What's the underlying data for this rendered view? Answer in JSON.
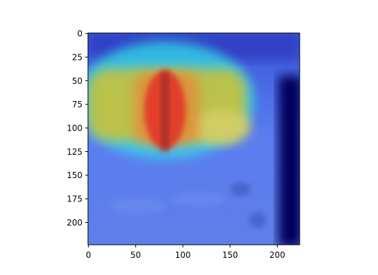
{
  "figure": {
    "image_description_icon": "chest-xray-heatmap-overlay",
    "colormap": [
      "#00007f",
      "#0000ff",
      "#00ffff",
      "#ffff00",
      "#ff0000"
    ],
    "axes": {
      "x_ticks": [
        "0",
        "50",
        "100",
        "150",
        "200"
      ],
      "y_ticks": [
        "0",
        "25",
        "50",
        "75",
        "100",
        "125",
        "150",
        "175",
        "200"
      ]
    }
  }
}
